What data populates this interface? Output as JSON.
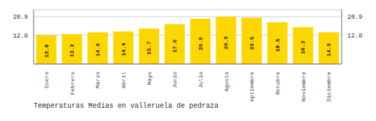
{
  "chart_data": {
    "type": "bar",
    "title": "Temperaturas Medias en valleruela de pedraza",
    "categories": [
      "Enero",
      "Febrero",
      "Marzo",
      "Abril",
      "Mayo",
      "Junio",
      "Julio",
      "Agosto",
      "Septiembre",
      "Octubre",
      "Noviembre",
      "Diciembre"
    ],
    "values": [
      12.8,
      13.2,
      14.0,
      14.4,
      15.7,
      17.6,
      20.0,
      20.9,
      20.5,
      18.5,
      16.3,
      14.0
    ],
    "value_labels": [
      "12.8",
      "13.2",
      "14.0",
      "14.4",
      "15.7",
      "17.6",
      "20.0",
      "20.9",
      "20.5",
      "18.5",
      "16.3",
      "14.0"
    ],
    "color": "#FFD700",
    "ylim": [
      0,
      24.0
    ],
    "yticks": [
      12.8,
      20.9
    ],
    "grid": true,
    "data_labels": true
  }
}
